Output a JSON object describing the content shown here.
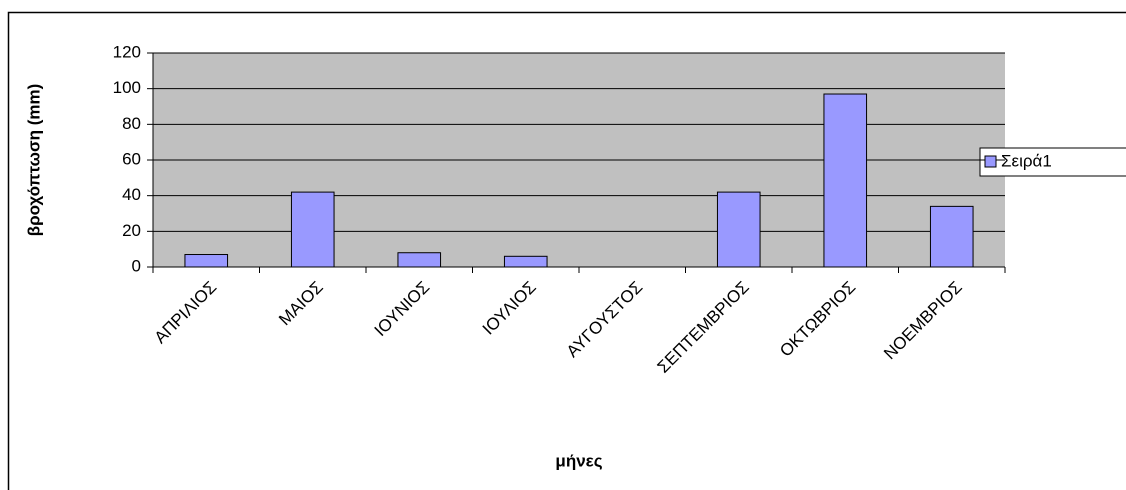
{
  "chart_data": {
    "type": "bar",
    "x_label": "μήνες",
    "y_label": "βροχόπτωση (mm)",
    "categories": [
      "ΑΠΡΙΛΙΟΣ",
      "ΜΑΙΟΣ",
      "ΙΟΥΝΙΟΣ",
      "ΙΟΥΛΙΟΣ",
      "ΑΥΓΟΥΣΤΟΣ",
      "ΣΕΠΤΕΜΒΡΙΟΣ",
      "ΟΚΤΩΒΡΙΟΣ",
      "ΝΟΕΜΒΡΙΟΣ"
    ],
    "series": [
      {
        "name": "Σειρά1",
        "color": "#9999ff",
        "values": [
          7,
          42,
          8,
          6,
          0,
          42,
          97,
          34
        ]
      }
    ],
    "ylim": [
      0,
      120
    ],
    "yticks": [
      0,
      20,
      40,
      60,
      80,
      100,
      120
    ],
    "grid": true,
    "legend": "right"
  }
}
